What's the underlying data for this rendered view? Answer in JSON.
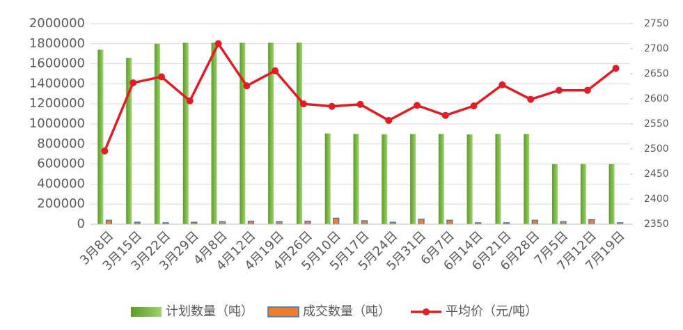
{
  "chart_data": {
    "type": "bar_line",
    "categories": [
      "3月8日",
      "3月15日",
      "3月22日",
      "3月29日",
      "4月8日",
      "4月12日",
      "4月19日",
      "4月26日",
      "5月10日",
      "5月17日",
      "5月24日",
      "5月31日",
      "6月7日",
      "6月14日",
      "6月21日",
      "6月28日",
      "7月5日",
      "7月12日",
      "7月19日"
    ],
    "series": [
      {
        "name": "计划数量（吨）",
        "color": "#7ab648",
        "type": "bar",
        "values": [
          1740000,
          1660000,
          1800000,
          1810000,
          1810000,
          1810000,
          1810000,
          1810000,
          905000,
          900000,
          895000,
          900000,
          900000,
          895000,
          900000,
          900000,
          600000,
          600000,
          600000
        ]
      },
      {
        "name": "成交数量（吨）",
        "color": "#ed7d31",
        "type": "bar",
        "values": [
          40000,
          20000,
          15000,
          20000,
          25000,
          30000,
          25000,
          30000,
          60000,
          35000,
          20000,
          50000,
          40000,
          15000,
          15000,
          40000,
          25000,
          45000,
          15000
        ]
      },
      {
        "name": "平均价（元/吨）",
        "color": "#e31b23",
        "type": "line",
        "axis": "y2",
        "values": [
          2496,
          2632,
          2644,
          2596,
          2710,
          2626,
          2656,
          2590,
          2585,
          2589,
          2557,
          2587,
          2567,
          2586,
          2628,
          2599,
          2617,
          2617,
          2661
        ]
      }
    ],
    "ylim": [
      0,
      2000000
    ],
    "yticks": [
      0,
      200000,
      400000,
      600000,
      800000,
      1000000,
      1200000,
      1400000,
      1600000,
      1800000,
      2000000
    ],
    "y2lim": [
      2350,
      2750
    ],
    "y2ticks": [
      2350,
      2400,
      2450,
      2500,
      2550,
      2600,
      2650,
      2700,
      2750
    ],
    "grid": true,
    "legend": "bottom"
  }
}
